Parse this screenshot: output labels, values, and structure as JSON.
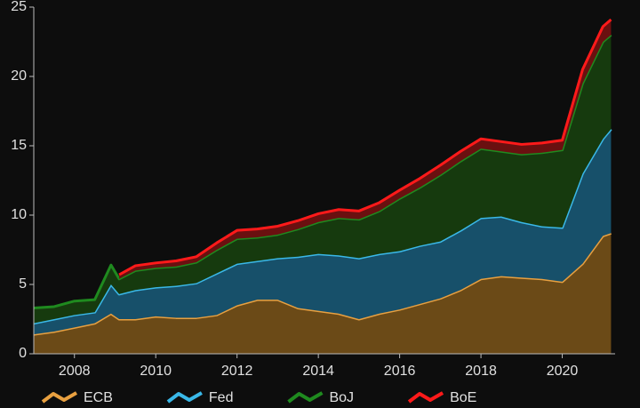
{
  "chart_data": {
    "type": "stacked_area",
    "x": [
      2007,
      2007.5,
      2008,
      2008.5,
      2008.9,
      2009.1,
      2009.5,
      2010,
      2010.5,
      2011,
      2011.5,
      2012,
      2012.5,
      2013,
      2013.5,
      2014,
      2014.5,
      2015,
      2015.5,
      2016,
      2016.5,
      2017,
      2017.5,
      2018,
      2018.5,
      2019,
      2019.5,
      2020,
      2020.5,
      2021,
      2021.2
    ],
    "series": [
      {
        "name": "ECB",
        "color": "#e8a040",
        "fill": "#6b4a17",
        "values": [
          1.4,
          1.6,
          1.9,
          2.2,
          2.9,
          2.5,
          2.5,
          2.7,
          2.6,
          2.6,
          2.8,
          3.5,
          3.9,
          3.9,
          3.3,
          3.1,
          2.9,
          2.5,
          2.9,
          3.2,
          3.6,
          4.0,
          4.6,
          5.4,
          5.6,
          5.5,
          5.4,
          5.2,
          6.5,
          8.5,
          8.7
        ]
      },
      {
        "name": "Fed",
        "color": "#3ab8e8",
        "fill": "#17506a",
        "values": [
          0.8,
          0.9,
          0.9,
          0.8,
          2.1,
          1.8,
          2.1,
          2.1,
          2.3,
          2.5,
          3.0,
          3.0,
          2.8,
          3.0,
          3.7,
          4.1,
          4.2,
          4.4,
          4.3,
          4.2,
          4.2,
          4.1,
          4.3,
          4.4,
          4.3,
          4.0,
          3.8,
          3.9,
          6.5,
          7.0,
          7.5
        ]
      },
      {
        "name": "BoJ",
        "color": "#1f8a1f",
        "fill": "#163a0e",
        "values": [
          1.1,
          0.9,
          1.0,
          0.9,
          1.4,
          1.1,
          1.4,
          1.4,
          1.4,
          1.5,
          1.7,
          1.8,
          1.7,
          1.7,
          2.0,
          2.3,
          2.7,
          2.8,
          3.1,
          3.8,
          4.2,
          4.8,
          5.0,
          5.0,
          4.7,
          4.9,
          5.3,
          5.6,
          6.5,
          7.0,
          6.8
        ]
      },
      {
        "name": "BoE",
        "color": "#ff1a1a",
        "fill": "#6a1010",
        "values": [
          null,
          null,
          null,
          null,
          null,
          0.3,
          0.35,
          0.35,
          0.4,
          0.4,
          0.5,
          0.6,
          0.6,
          0.6,
          0.6,
          0.6,
          0.6,
          0.6,
          0.6,
          0.6,
          0.65,
          0.7,
          0.7,
          0.7,
          0.7,
          0.7,
          0.7,
          0.7,
          1.0,
          1.1,
          1.1
        ]
      }
    ],
    "xlim": [
      2007,
      2021.3
    ],
    "xticks": [
      2008,
      2010,
      2012,
      2014,
      2016,
      2018,
      2020
    ],
    "ylim": [
      0,
      25
    ],
    "yticks": [
      0,
      5,
      10,
      15,
      20,
      25
    ]
  }
}
